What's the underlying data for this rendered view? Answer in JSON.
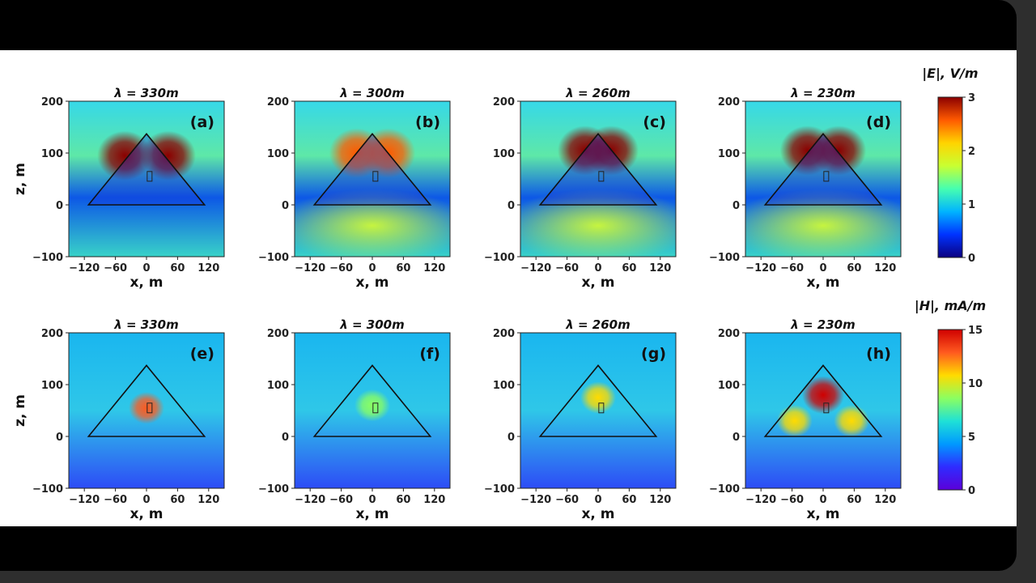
{
  "colors": {
    "e_stops": [
      "#0b0080",
      "#0033ff",
      "#00b4ff",
      "#46ffb0",
      "#c8ff32",
      "#ffd400",
      "#ff5a00",
      "#8b0000"
    ],
    "h_stops": [
      "#5b00d9",
      "#2f2cff",
      "#0099ff",
      "#1fe1d6",
      "#8bff61",
      "#ffdb00",
      "#ff5a1f",
      "#d00000"
    ]
  },
  "chart_data": [
    {
      "type": "heatmap",
      "panel": "(a)",
      "title": "λ = 330m",
      "field": "E",
      "xlabel": "x, m",
      "ylabel": "z, m",
      "xlim": [
        -150,
        150
      ],
      "ylim": [
        -100,
        200
      ],
      "xticks": [
        "−120",
        "−60",
        "0",
        "60",
        "120"
      ],
      "yticks": [
        "200",
        "100",
        "0",
        "−100"
      ],
      "triangle": [
        [
          -112,
          0
        ],
        [
          0,
          137
        ],
        [
          112,
          0
        ]
      ],
      "hotspots": [
        {
          "x": -42,
          "y": 95,
          "value": 2.8
        },
        {
          "x": 42,
          "y": 95,
          "value": 2.8
        }
      ],
      "colorbar_range": [
        0,
        3
      ]
    },
    {
      "type": "heatmap",
      "panel": "(b)",
      "title": "λ = 300m",
      "field": "E",
      "xlabel": "x, m",
      "ylabel": "z, m",
      "xlim": [
        -150,
        150
      ],
      "ylim": [
        -100,
        200
      ],
      "xticks": [
        "−120",
        "−60",
        "0",
        "60",
        "120"
      ],
      "yticks": [
        "200",
        "100",
        "0",
        "−100"
      ],
      "triangle": [
        [
          -112,
          0
        ],
        [
          0,
          137
        ],
        [
          112,
          0
        ]
      ],
      "hotspots": [
        {
          "x": -30,
          "y": 100,
          "value": 2.4
        },
        {
          "x": 30,
          "y": 100,
          "value": 2.4
        }
      ],
      "colorbar_range": [
        0,
        3
      ]
    },
    {
      "type": "heatmap",
      "panel": "(c)",
      "title": "λ = 260m",
      "field": "E",
      "xlabel": "x, m",
      "ylabel": "z, m",
      "xlim": [
        -150,
        150
      ],
      "ylim": [
        -100,
        200
      ],
      "xticks": [
        "−120",
        "−60",
        "0",
        "60",
        "120"
      ],
      "yticks": [
        "200",
        "100",
        "0",
        "−100"
      ],
      "triangle": [
        [
          -112,
          0
        ],
        [
          0,
          137
        ],
        [
          112,
          0
        ]
      ],
      "hotspots": [
        {
          "x": -25,
          "y": 105,
          "value": 2.8
        },
        {
          "x": 25,
          "y": 105,
          "value": 2.8
        }
      ],
      "colorbar_range": [
        0,
        3
      ]
    },
    {
      "type": "heatmap",
      "panel": "(d)",
      "title": "λ = 230m",
      "field": "E",
      "xlabel": "x, m",
      "ylabel": "z, m",
      "xlim": [
        -150,
        150
      ],
      "ylim": [
        -100,
        200
      ],
      "xticks": [
        "−120",
        "−60",
        "0",
        "60",
        "120"
      ],
      "yticks": [
        "200",
        "100",
        "0",
        "−100"
      ],
      "triangle": [
        [
          -112,
          0
        ],
        [
          0,
          137
        ],
        [
          112,
          0
        ]
      ],
      "hotspots": [
        {
          "x": -30,
          "y": 105,
          "value": 3.0
        },
        {
          "x": 30,
          "y": 105,
          "value": 3.0
        }
      ],
      "colorbar_range": [
        0,
        3
      ]
    },
    {
      "type": "heatmap",
      "panel": "(e)",
      "title": "λ = 330m",
      "field": "H",
      "xlabel": "x, m",
      "ylabel": "z, m",
      "xlim": [
        -150,
        150
      ],
      "ylim": [
        -100,
        200
      ],
      "xticks": [
        "−120",
        "−60",
        "0",
        "60",
        "120"
      ],
      "yticks": [
        "200",
        "100",
        "0",
        "−100"
      ],
      "triangle": [
        [
          -112,
          0
        ],
        [
          0,
          137
        ],
        [
          112,
          0
        ]
      ],
      "hotspots": [
        {
          "x": 0,
          "y": 55,
          "value": 12
        }
      ],
      "colorbar_range": [
        0,
        15
      ]
    },
    {
      "type": "heatmap",
      "panel": "(f)",
      "title": "λ = 300m",
      "field": "H",
      "xlabel": "x, m",
      "ylabel": "z, m",
      "xlim": [
        -150,
        150
      ],
      "ylim": [
        -100,
        200
      ],
      "xticks": [
        "−120",
        "−60",
        "0",
        "60",
        "120"
      ],
      "yticks": [
        "200",
        "100",
        "0",
        "−100"
      ],
      "triangle": [
        [
          -112,
          0
        ],
        [
          0,
          137
        ],
        [
          112,
          0
        ]
      ],
      "hotspots": [
        {
          "x": 0,
          "y": 60,
          "value": 8
        }
      ],
      "colorbar_range": [
        0,
        15
      ]
    },
    {
      "type": "heatmap",
      "panel": "(g)",
      "title": "λ = 260m",
      "field": "H",
      "xlabel": "x, m",
      "ylabel": "z, m",
      "xlim": [
        -150,
        150
      ],
      "ylim": [
        -100,
        200
      ],
      "xticks": [
        "−120",
        "−60",
        "0",
        "60",
        "120"
      ],
      "yticks": [
        "200",
        "100",
        "0",
        "−100"
      ],
      "triangle": [
        [
          -112,
          0
        ],
        [
          0,
          137
        ],
        [
          112,
          0
        ]
      ],
      "hotspots": [
        {
          "x": 0,
          "y": 75,
          "value": 11
        }
      ],
      "colorbar_range": [
        0,
        15
      ]
    },
    {
      "type": "heatmap",
      "panel": "(h)",
      "title": "λ = 230m",
      "field": "H",
      "xlabel": "x, m",
      "ylabel": "z, m",
      "xlim": [
        -150,
        150
      ],
      "ylim": [
        -100,
        200
      ],
      "xticks": [
        "−120",
        "−60",
        "0",
        "60",
        "120"
      ],
      "yticks": [
        "200",
        "100",
        "0",
        "−100"
      ],
      "triangle": [
        [
          -112,
          0
        ],
        [
          0,
          137
        ],
        [
          112,
          0
        ]
      ],
      "hotspots": [
        {
          "x": 0,
          "y": 80,
          "value": 15
        },
        {
          "x": -55,
          "y": 30,
          "value": 10
        },
        {
          "x": 55,
          "y": 30,
          "value": 10
        }
      ],
      "colorbar_range": [
        0,
        15
      ]
    }
  ],
  "colorbars": [
    {
      "label": "|E|, V/m",
      "ticks": [
        "3",
        "2",
        "1",
        "0"
      ],
      "range": [
        0,
        3
      ]
    },
    {
      "label": "|H|, mA/m",
      "ticks": [
        "15",
        "10",
        "5",
        "0"
      ],
      "range": [
        0,
        15
      ]
    }
  ]
}
